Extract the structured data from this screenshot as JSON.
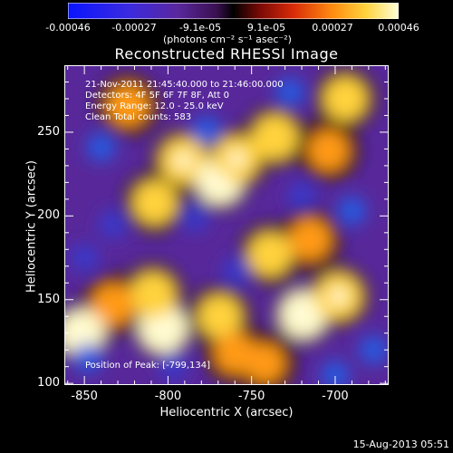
{
  "colorbar": {
    "tick_labels": [
      "-0.00046",
      "-0.00027",
      "-9.1e-05",
      "9.1e-05",
      "0.00027",
      "0.00046"
    ],
    "units": "(photons cm⁻² s⁻¹ asec⁻²)"
  },
  "title": "Reconstructed RHESSI Image",
  "annotations": {
    "time_range": "21-Nov-2011 21:45:40.000 to 21:46:00.000",
    "detectors": "Detectors: 4F 5F 6F 7F 8F, Att 0",
    "energy": "Energy Range: 12.0 - 25.0 keV",
    "clean": "Clean     Total counts: 583",
    "peak": "Position of Peak: [-799,134]"
  },
  "date_stamp": "15-Aug-2013 05:51",
  "chart_data": {
    "type": "heatmap",
    "title": "Reconstructed RHESSI Image",
    "xlabel": "Heliocentric X (arcsec)",
    "ylabel": "Heliocentric Y (arcsec)",
    "xlim": [
      -862,
      -668
    ],
    "ylim": [
      99,
      290
    ],
    "x_ticks": [
      -850,
      -800,
      -750,
      -700
    ],
    "y_ticks": [
      100,
      150,
      200,
      250
    ],
    "x_tick_labels": [
      "-850",
      "-800",
      "-750",
      "-700"
    ],
    "y_tick_labels": [
      "100",
      "150",
      "200",
      "250"
    ],
    "value_range": [
      -0.00046,
      0.00046
    ],
    "colormap": "red-temperature (blue-purple negative to white positive)",
    "peak_position": [
      -799,
      134
    ],
    "bright_regions": [
      {
        "x": -791,
        "y": 233,
        "value": 0.0004
      },
      {
        "x": -808,
        "y": 208,
        "value": 0.00035
      },
      {
        "x": -769,
        "y": 221,
        "value": 0.00042
      },
      {
        "x": -759,
        "y": 234,
        "value": 0.0004
      },
      {
        "x": -803,
        "y": 133,
        "value": 0.00045
      },
      {
        "x": -809,
        "y": 153,
        "value": 0.00038
      },
      {
        "x": -769,
        "y": 140,
        "value": 0.00035
      },
      {
        "x": -719,
        "y": 141,
        "value": 0.00042
      },
      {
        "x": -715,
        "y": 186,
        "value": 0.00032
      },
      {
        "x": -698,
        "y": 152,
        "value": 0.0004
      },
      {
        "x": -739,
        "y": 177,
        "value": 0.00035
      },
      {
        "x": -736,
        "y": 247,
        "value": 0.00038
      },
      {
        "x": -704,
        "y": 239,
        "value": 0.0003
      },
      {
        "x": -694,
        "y": 270,
        "value": 0.00035
      },
      {
        "x": -833,
        "y": 147,
        "value": 0.00033
      },
      {
        "x": -852,
        "y": 130,
        "value": 0.00042
      },
      {
        "x": -824,
        "y": 266,
        "value": 0.00032
      },
      {
        "x": -760,
        "y": 118,
        "value": 0.0003
      },
      {
        "x": -742,
        "y": 112,
        "value": 0.00028
      }
    ],
    "dark_regions": [
      {
        "x": -840,
        "y": 241,
        "value": -0.00042
      },
      {
        "x": -777,
        "y": 251,
        "value": -0.00035
      },
      {
        "x": -833,
        "y": 195,
        "value": -0.0003
      },
      {
        "x": -784,
        "y": 199,
        "value": -0.0003
      },
      {
        "x": -759,
        "y": 167,
        "value": -0.00028
      },
      {
        "x": -690,
        "y": 203,
        "value": -0.00042
      },
      {
        "x": -727,
        "y": 274,
        "value": -0.00038
      },
      {
        "x": -848,
        "y": 115,
        "value": -0.0004
      },
      {
        "x": -700,
        "y": 105,
        "value": -0.00035
      },
      {
        "x": -677,
        "y": 120,
        "value": -0.0004
      },
      {
        "x": -720,
        "y": 212,
        "value": -0.0003
      },
      {
        "x": -797,
        "y": 110,
        "value": -0.00028
      },
      {
        "x": -850,
        "y": 175,
        "value": -0.0003
      }
    ]
  }
}
